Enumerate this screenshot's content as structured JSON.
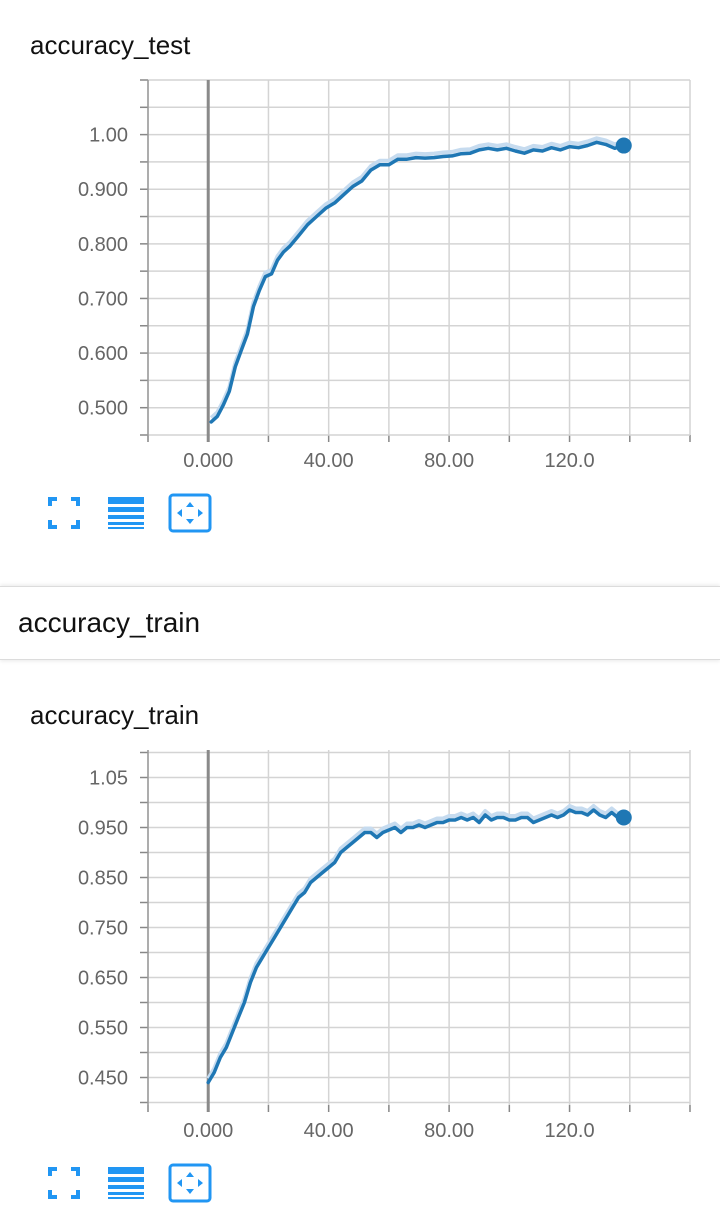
{
  "section": {
    "title": "accuracy_train"
  },
  "colors": {
    "line": "#1f77b4",
    "band": "#c6dbef",
    "grid": "#d4d4d4",
    "icon": "#2196f3"
  },
  "toolbar": {
    "icons": [
      "expand-icon",
      "toggle-log-scale-icon",
      "fit-domain-icon"
    ]
  },
  "chart_data": [
    {
      "type": "line",
      "title": "accuracy_test",
      "x_ticks": [
        "0.000",
        "40.00",
        "80.00",
        "120.0"
      ],
      "y_ticks": [
        "0.500",
        "0.600",
        "0.700",
        "0.800",
        "0.900",
        "1.00"
      ],
      "xlim": [
        -20,
        160
      ],
      "ylim": [
        0.45,
        1.1
      ],
      "grid": true,
      "series": [
        {
          "x": [
            1,
            3,
            5,
            7,
            9,
            11,
            13,
            15,
            17,
            19,
            21,
            23,
            25,
            27,
            30,
            33,
            36,
            39,
            42,
            45,
            48,
            51,
            54,
            57,
            60,
            63,
            66,
            69,
            72,
            75,
            78,
            81,
            84,
            87,
            90,
            93,
            96,
            99,
            102,
            105,
            108,
            111,
            114,
            117,
            120,
            123,
            126,
            129,
            132,
            135,
            138
          ],
          "y": [
            0.474,
            0.484,
            0.505,
            0.53,
            0.575,
            0.605,
            0.635,
            0.685,
            0.715,
            0.74,
            0.745,
            0.77,
            0.785,
            0.795,
            0.815,
            0.835,
            0.85,
            0.865,
            0.875,
            0.89,
            0.905,
            0.915,
            0.935,
            0.945,
            0.945,
            0.955,
            0.955,
            0.958,
            0.957,
            0.958,
            0.96,
            0.961,
            0.965,
            0.966,
            0.972,
            0.975,
            0.972,
            0.975,
            0.97,
            0.966,
            0.972,
            0.97,
            0.976,
            0.972,
            0.978,
            0.976,
            0.98,
            0.986,
            0.982,
            0.975,
            0.98
          ]
        }
      ]
    },
    {
      "type": "line",
      "title": "accuracy_train",
      "x_ticks": [
        "0.000",
        "40.00",
        "80.00",
        "120.0"
      ],
      "y_ticks": [
        "0.450",
        "0.550",
        "0.650",
        "0.750",
        "0.850",
        "0.950",
        "1.05"
      ],
      "xlim": [
        -20,
        160
      ],
      "ylim": [
        0.395,
        1.105
      ],
      "grid": true,
      "series": [
        {
          "x": [
            0,
            2,
            4,
            6,
            8,
            10,
            12,
            14,
            16,
            18,
            20,
            22,
            24,
            26,
            28,
            30,
            32,
            34,
            36,
            38,
            40,
            42,
            44,
            46,
            48,
            50,
            52,
            54,
            56,
            58,
            60,
            62,
            64,
            66,
            68,
            70,
            72,
            74,
            76,
            78,
            80,
            82,
            84,
            86,
            88,
            90,
            92,
            94,
            96,
            98,
            100,
            102,
            104,
            106,
            108,
            110,
            112,
            114,
            116,
            118,
            120,
            122,
            124,
            126,
            128,
            130,
            132,
            134,
            136,
            138
          ],
          "y": [
            0.44,
            0.46,
            0.49,
            0.51,
            0.54,
            0.57,
            0.6,
            0.64,
            0.67,
            0.69,
            0.71,
            0.73,
            0.75,
            0.77,
            0.79,
            0.81,
            0.82,
            0.84,
            0.85,
            0.86,
            0.87,
            0.88,
            0.9,
            0.91,
            0.92,
            0.93,
            0.94,
            0.94,
            0.93,
            0.94,
            0.945,
            0.95,
            0.94,
            0.95,
            0.95,
            0.955,
            0.95,
            0.955,
            0.96,
            0.96,
            0.965,
            0.965,
            0.97,
            0.965,
            0.97,
            0.96,
            0.975,
            0.965,
            0.97,
            0.97,
            0.965,
            0.965,
            0.97,
            0.97,
            0.96,
            0.965,
            0.97,
            0.975,
            0.97,
            0.975,
            0.985,
            0.98,
            0.98,
            0.975,
            0.985,
            0.975,
            0.97,
            0.98,
            0.97,
            0.97
          ]
        }
      ]
    }
  ]
}
